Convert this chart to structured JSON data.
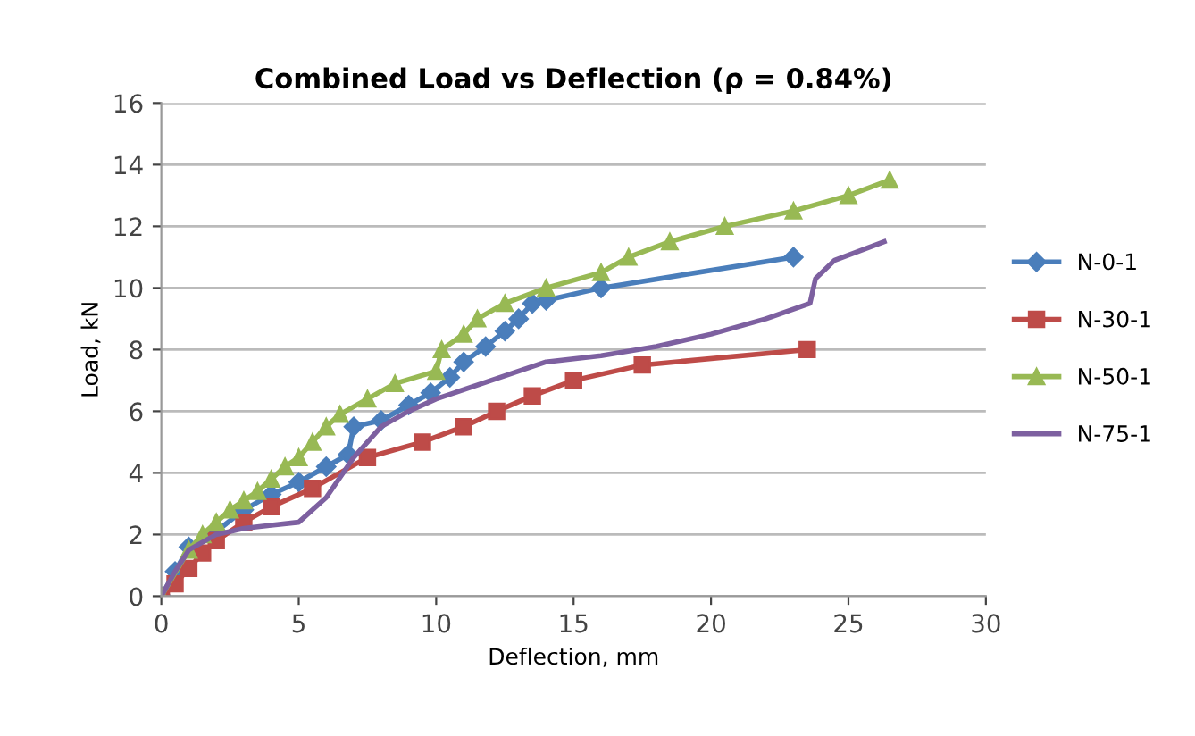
{
  "chart_data": {
    "type": "line",
    "title": "Combined Load vs Deflection (ρ = 0.84%)",
    "xlabel": "Deflection, mm",
    "ylabel": "Load, kN",
    "xlim": [
      0,
      30
    ],
    "xticks": [
      0,
      5,
      10,
      15,
      20,
      25,
      30
    ],
    "ylim": [
      0,
      16
    ],
    "yticks": [
      0,
      2,
      4,
      6,
      8,
      10,
      12,
      14,
      16
    ],
    "grid": "y",
    "legend": "right",
    "series": [
      {
        "name": "N-0-1",
        "color": "#4a7ebb",
        "marker": "diamond",
        "x": [
          0,
          0.5,
          1,
          2,
          3,
          4,
          5,
          6,
          6.8,
          7,
          8,
          9,
          9.8,
          10.5,
          11,
          11.8,
          12.5,
          13,
          13.5,
          14,
          16,
          23
        ],
        "values": [
          0,
          0.8,
          1.6,
          2.1,
          2.8,
          3.3,
          3.7,
          4.2,
          4.6,
          5.5,
          5.7,
          6.2,
          6.6,
          7.1,
          7.6,
          8.1,
          8.6,
          9.0,
          9.5,
          9.6,
          10.0,
          11.0
        ]
      },
      {
        "name": "N-30-1",
        "color": "#be4b48",
        "marker": "square",
        "x": [
          0,
          0.5,
          1,
          1.5,
          2,
          3,
          4,
          5.5,
          7.5,
          9.5,
          11,
          12.2,
          13.5,
          15,
          17.5,
          23.5
        ],
        "values": [
          0,
          0.4,
          0.9,
          1.4,
          1.8,
          2.4,
          2.9,
          3.5,
          4.5,
          5.0,
          5.5,
          6.0,
          6.5,
          7.0,
          7.5,
          8.0
        ]
      },
      {
        "name": "N-50-1",
        "color": "#98b954",
        "marker": "triangle",
        "x": [
          0,
          1,
          1.5,
          2,
          2.5,
          3,
          3.5,
          4,
          4.5,
          5,
          5.5,
          6,
          6.5,
          7.5,
          8.5,
          10,
          10.2,
          11,
          11.5,
          12.5,
          14,
          16,
          17,
          18.5,
          20.5,
          23,
          25,
          26.5
        ],
        "values": [
          0,
          1.5,
          2.0,
          2.4,
          2.8,
          3.1,
          3.4,
          3.8,
          4.2,
          4.5,
          5.0,
          5.5,
          5.9,
          6.4,
          6.9,
          7.3,
          8.0,
          8.5,
          9.0,
          9.5,
          10.0,
          10.5,
          11.0,
          11.5,
          12.0,
          12.5,
          13.0,
          13.5
        ]
      },
      {
        "name": "N-75-1",
        "color": "#7d60a0",
        "marker": "none",
        "x": [
          0,
          0.5,
          1,
          2,
          3,
          4,
          5,
          6,
          7,
          8,
          9,
          10,
          12,
          14,
          16,
          18,
          20,
          22,
          23.6,
          23.8,
          24.5,
          26.3
        ],
        "values": [
          0,
          0.8,
          1.5,
          2.0,
          2.2,
          2.3,
          2.4,
          3.2,
          4.5,
          5.5,
          6.0,
          6.4,
          7.0,
          7.6,
          7.8,
          8.1,
          8.5,
          9.0,
          9.5,
          10.3,
          10.9,
          11.5
        ]
      }
    ]
  }
}
